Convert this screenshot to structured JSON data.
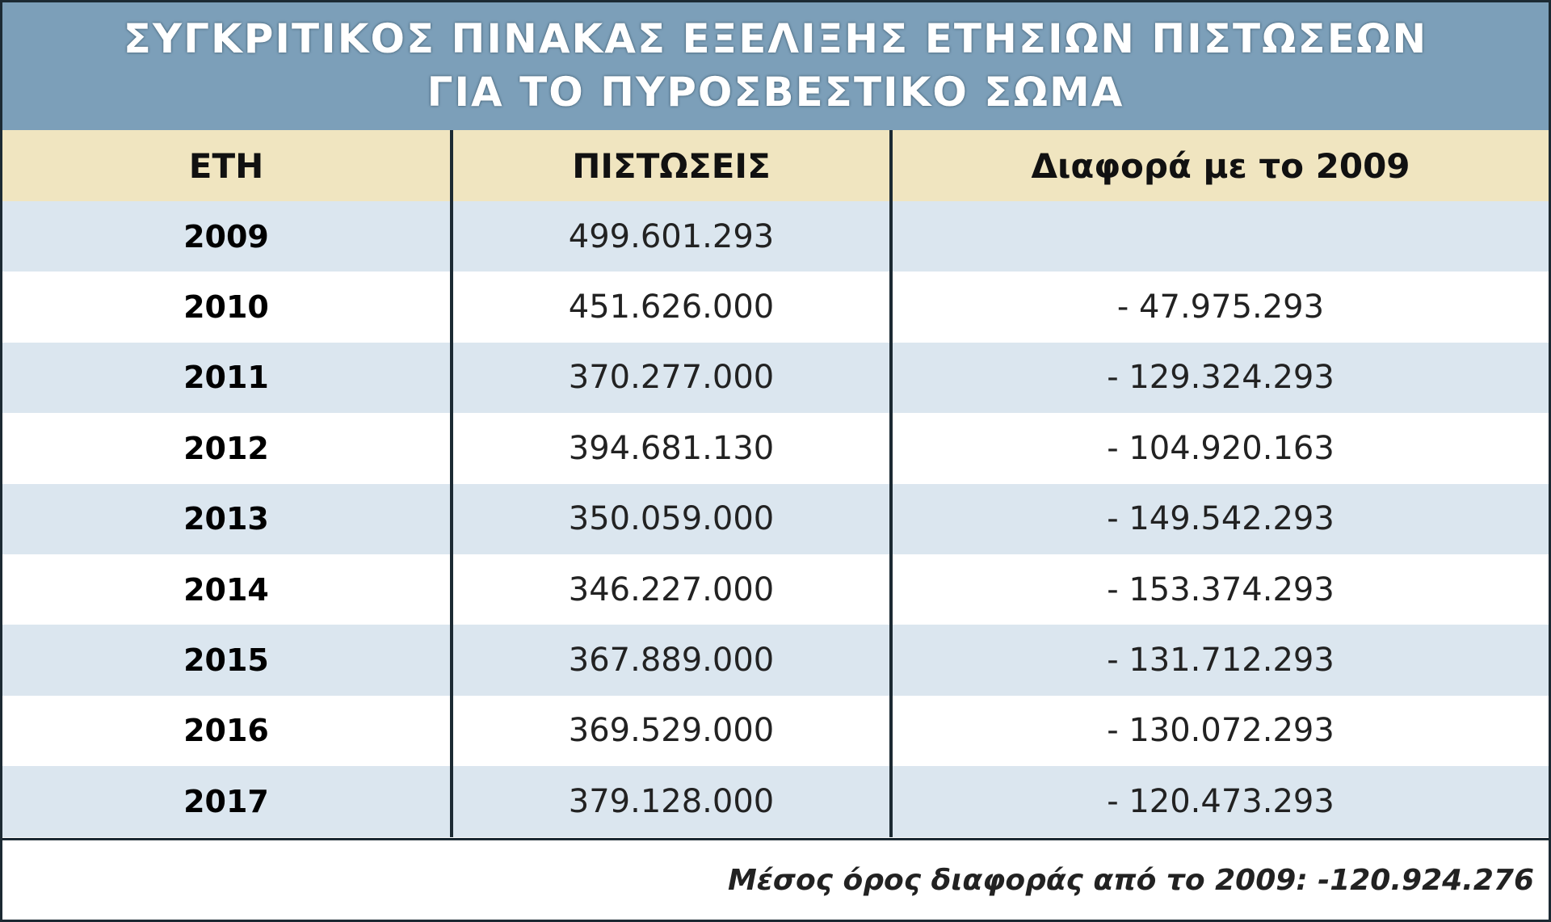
{
  "title": {
    "lines": [
      "ΣΥΓΚΡΙΤΙΚΟΣ ΠΙΝΑΚΑΣ ΕΞΕΛΙΞΗΣ ΕΤΗΣΙΩΝ ΠΙΣΤΩΣΕΩΝ",
      "ΓΙΑ ΤΟ ΠΥΡΟΣΒΕΣΤΙΚΟ ΣΩΜΑ"
    ]
  },
  "table": {
    "header": [
      "ΕΤΗ",
      "ΠΙΣΤΩΣΕΙΣ",
      "Διαφορά με το 2009"
    ],
    "rows": [
      [
        "2009",
        "499.601.293"
      ],
      [
        "2010",
        "451.626.000",
        "- 47.975.293"
      ],
      [
        "2011",
        "370.277.000",
        "- 129.324.293"
      ],
      [
        "2012",
        "394.681.130",
        "- 104.920.163"
      ],
      [
        "2013",
        "350.059.000",
        "- 149.542.293"
      ],
      [
        "2014",
        "346.227.000",
        "- 153.374.293"
      ],
      [
        "2015",
        "367.889.000",
        "- 131.712.293"
      ],
      [
        "2016",
        "369.529.000",
        "- 130.072.293"
      ],
      [
        "2017",
        "379.128.000",
        "- 120.473.293"
      ]
    ]
  },
  "footer": {
    "note": "Μέσος όρος διαφοράς από το 2009: -120.924.276"
  }
}
